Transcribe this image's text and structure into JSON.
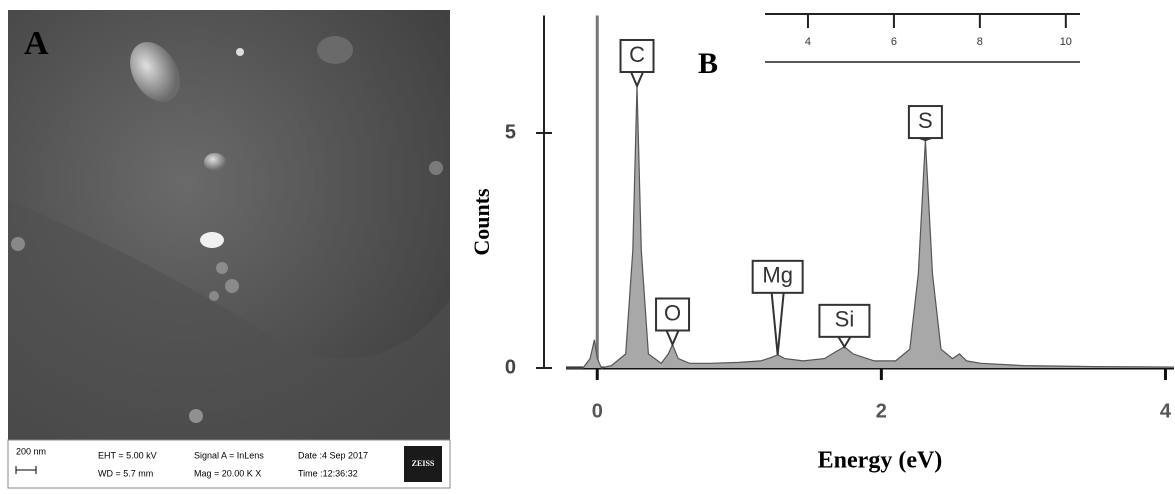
{
  "panel_a": {
    "label": "A",
    "info_bar": {
      "scale": "200 nm",
      "eht": "EHT = 5.00 kV",
      "wd": "WD = 5.7 mm",
      "signal": "Signal A = InLens",
      "mag": "Mag = 20.00 K X",
      "date": "Date :4 Sep 2017",
      "time": "Time :12:36:32",
      "brand": "ZEISS"
    }
  },
  "chart_data": {
    "type": "area",
    "panel_label": "B",
    "x_label": "Energy (eV)",
    "y_label": "Counts",
    "color": "#a8a8a8",
    "x": [
      -0.22,
      -0.1,
      -0.05,
      -0.02,
      0.0,
      0.03,
      0.1,
      0.2,
      0.25,
      0.28,
      0.31,
      0.36,
      0.45,
      0.5,
      0.53,
      0.57,
      0.65,
      0.8,
      1.0,
      1.15,
      1.22,
      1.27,
      1.32,
      1.45,
      1.6,
      1.68,
      1.74,
      1.8,
      1.95,
      2.1,
      2.2,
      2.26,
      2.31,
      2.36,
      2.42,
      2.5,
      2.55,
      2.6,
      2.7,
      3.0,
      3.5,
      4.06
    ],
    "values": [
      0,
      0,
      0.2,
      0.6,
      0.2,
      0,
      0.05,
      0.3,
      2.5,
      6.0,
      2.5,
      0.3,
      0.1,
      0.3,
      0.5,
      0.2,
      0.1,
      0.1,
      0.12,
      0.15,
      0.22,
      0.28,
      0.2,
      0.15,
      0.2,
      0.35,
      0.45,
      0.3,
      0.15,
      0.15,
      0.4,
      2.0,
      4.85,
      2.0,
      0.4,
      0.2,
      0.3,
      0.15,
      0.1,
      0.05,
      0.03,
      0.02
    ],
    "xlim": [
      -0.22,
      4.06
    ],
    "ylim": [
      0,
      7.5
    ],
    "xticks": [
      0,
      2,
      4
    ],
    "yticks": [
      0,
      5
    ],
    "annotations": [
      {
        "text": "C",
        "x": 0.28,
        "y": 6.0
      },
      {
        "text": "O",
        "x": 0.53,
        "y": 0.5
      },
      {
        "text": "Mg",
        "x": 1.27,
        "y": 0.28
      },
      {
        "text": "Si",
        "x": 1.74,
        "y": 0.45
      },
      {
        "text": "S",
        "x": 2.31,
        "y": 4.85
      }
    ],
    "inset_ruler": {
      "xlim": [
        3,
        10.33
      ],
      "xticks": [
        4,
        6,
        8,
        10
      ]
    }
  }
}
